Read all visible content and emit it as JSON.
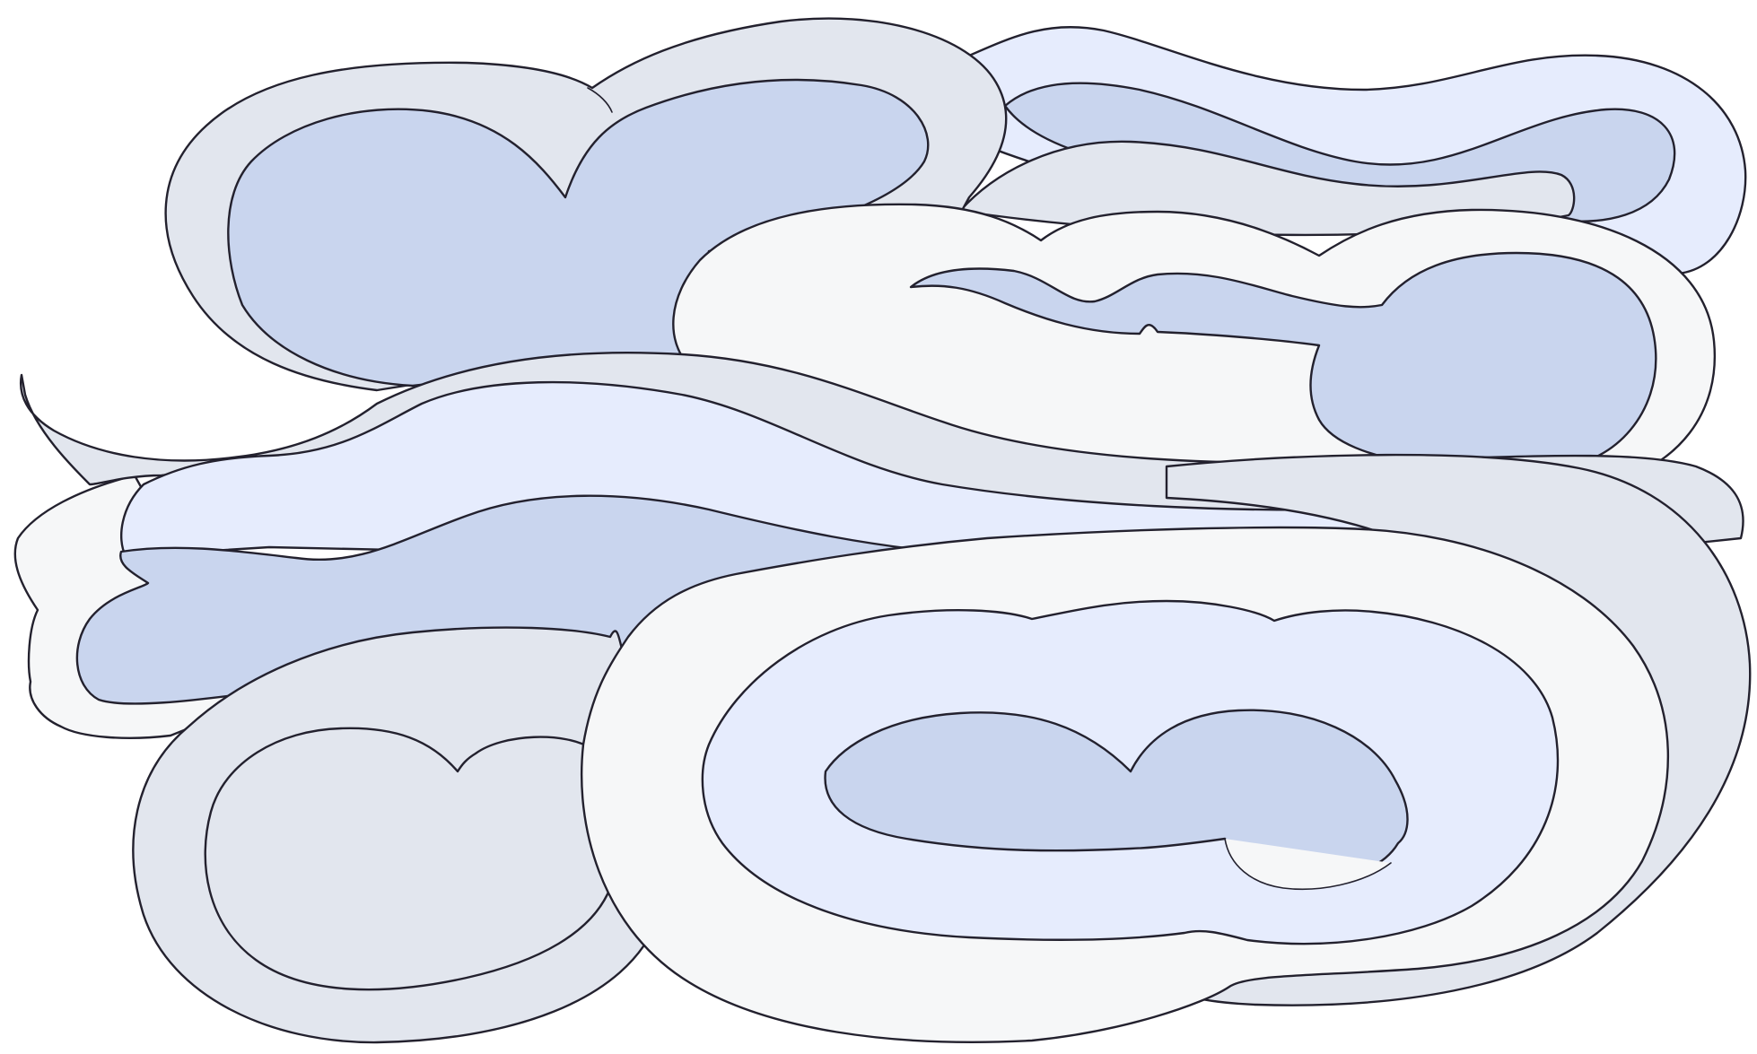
{
  "palette": {
    "outline": "#23212e",
    "cloud_gray": "#e2e6ee",
    "cloud_white": "#f6f7f8",
    "cloud_light_blue": "#e6ecfd",
    "cloud_blue": "#c9d5ee"
  },
  "illustration": {
    "subject": "stylized-clouds",
    "layers": [
      {
        "name": "cloud-top-left",
        "colors": [
          "cloud_gray",
          "cloud_blue"
        ]
      },
      {
        "name": "cloud-top-right",
        "colors": [
          "cloud_light_blue",
          "cloud_blue",
          "cloud_gray"
        ]
      },
      {
        "name": "cloud-upper-middle",
        "colors": [
          "cloud_white",
          "cloud_blue"
        ]
      },
      {
        "name": "cloud-swirl-band",
        "colors": [
          "cloud_gray",
          "cloud_light_blue",
          "cloud_white",
          "cloud_blue"
        ]
      },
      {
        "name": "cloud-bottom-left",
        "colors": [
          "cloud_gray"
        ]
      },
      {
        "name": "cloud-bottom-right",
        "colors": [
          "cloud_gray",
          "cloud_white",
          "cloud_light_blue",
          "cloud_blue"
        ]
      }
    ]
  }
}
